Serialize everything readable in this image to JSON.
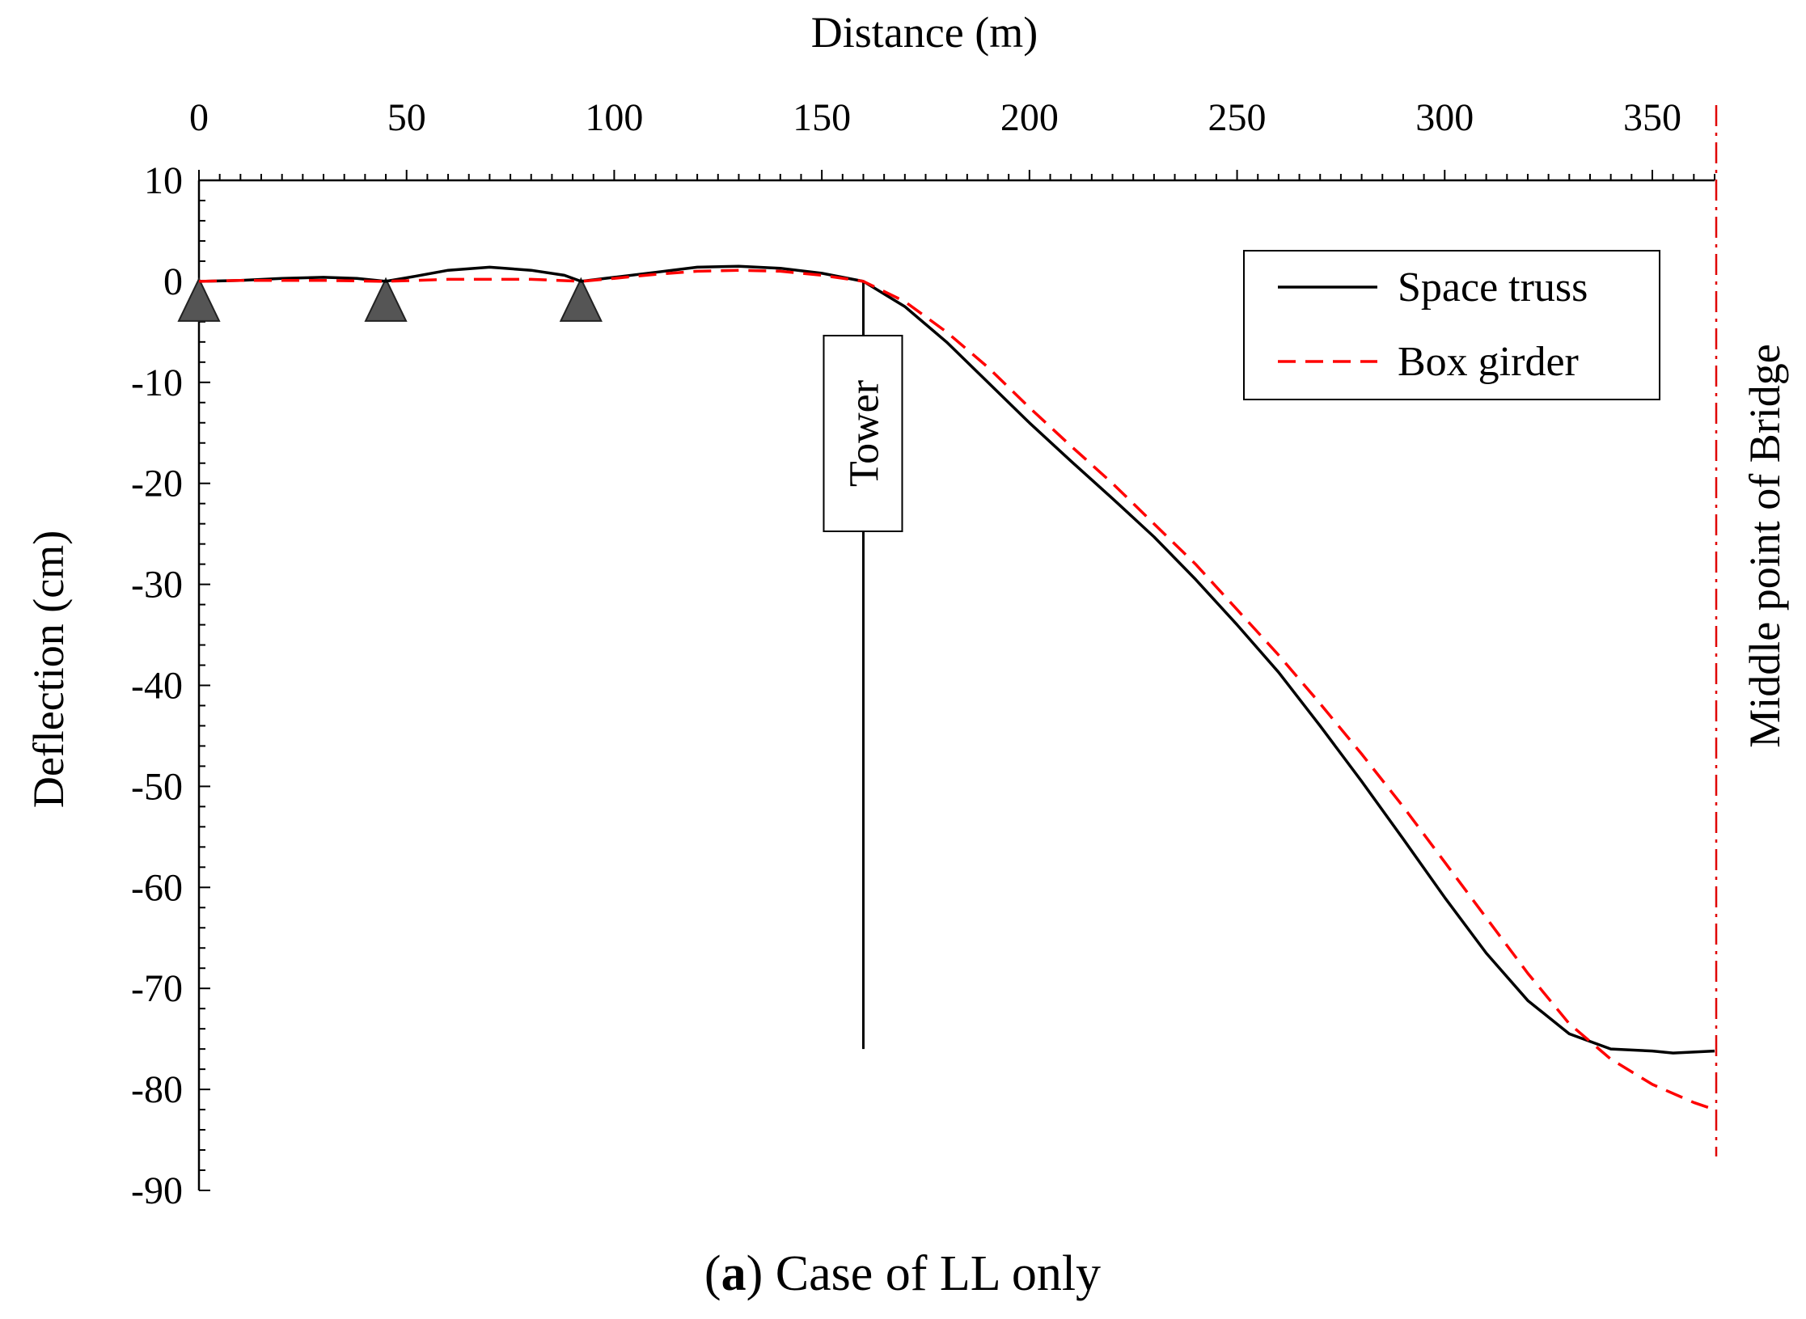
{
  "chart_data": {
    "type": "line",
    "xlabel": "Distance (m)",
    "ylabel": "Deflection (cm)",
    "xlim": [
      0,
      365
    ],
    "ylim": [
      -90,
      10
    ],
    "x_ticks": [
      0,
      50,
      100,
      150,
      200,
      250,
      300,
      350
    ],
    "y_ticks": [
      10,
      0,
      -10,
      -20,
      -30,
      -40,
      -50,
      -60,
      -70,
      -80,
      -90
    ],
    "x_axis_position": "top",
    "grid": false,
    "legend_position": "top-right",
    "series": [
      {
        "name": "Space truss",
        "style": "solid",
        "color": "#000000",
        "points": [
          [
            0,
            0
          ],
          [
            10,
            0.1
          ],
          [
            20,
            0.3
          ],
          [
            30,
            0.4
          ],
          [
            38,
            0.3
          ],
          [
            45,
            0
          ],
          [
            52,
            0.5
          ],
          [
            60,
            1.1
          ],
          [
            70,
            1.4
          ],
          [
            80,
            1.1
          ],
          [
            88,
            0.6
          ],
          [
            92,
            0
          ],
          [
            100,
            0.4
          ],
          [
            110,
            0.9
          ],
          [
            120,
            1.4
          ],
          [
            130,
            1.5
          ],
          [
            140,
            1.3
          ],
          [
            150,
            0.8
          ],
          [
            160,
            0
          ],
          [
            170,
            -2.5
          ],
          [
            180,
            -6
          ],
          [
            190,
            -10
          ],
          [
            200,
            -14
          ],
          [
            210,
            -17.8
          ],
          [
            220,
            -21.5
          ],
          [
            230,
            -25.3
          ],
          [
            240,
            -29.5
          ],
          [
            250,
            -34
          ],
          [
            260,
            -38.7
          ],
          [
            270,
            -44
          ],
          [
            280,
            -49.5
          ],
          [
            290,
            -55.2
          ],
          [
            300,
            -61
          ],
          [
            310,
            -66.5
          ],
          [
            320,
            -71.2
          ],
          [
            330,
            -74.5
          ],
          [
            340,
            -76.0
          ],
          [
            350,
            -76.2
          ],
          [
            355,
            -76.4
          ],
          [
            360,
            -76.3
          ],
          [
            365,
            -76.2
          ]
        ]
      },
      {
        "name": "Box girder",
        "style": "dashed",
        "color": "#ff0000",
        "points": [
          [
            0,
            0
          ],
          [
            10,
            0.1
          ],
          [
            20,
            0.1
          ],
          [
            30,
            0.1
          ],
          [
            45,
            0
          ],
          [
            60,
            0.2
          ],
          [
            80,
            0.2
          ],
          [
            92,
            0
          ],
          [
            100,
            0.3
          ],
          [
            110,
            0.7
          ],
          [
            120,
            1
          ],
          [
            130,
            1.1
          ],
          [
            140,
            1
          ],
          [
            150,
            0.6
          ],
          [
            160,
            0
          ],
          [
            170,
            -2
          ],
          [
            180,
            -5
          ],
          [
            190,
            -8.5
          ],
          [
            200,
            -12.5
          ],
          [
            210,
            -16.3
          ],
          [
            220,
            -20
          ],
          [
            230,
            -24
          ],
          [
            240,
            -28
          ],
          [
            250,
            -32.5
          ],
          [
            260,
            -37
          ],
          [
            270,
            -41.8
          ],
          [
            280,
            -46.8
          ],
          [
            290,
            -52
          ],
          [
            300,
            -57.5
          ],
          [
            310,
            -63
          ],
          [
            320,
            -68.5
          ],
          [
            330,
            -73.5
          ],
          [
            340,
            -77
          ],
          [
            350,
            -79.5
          ],
          [
            360,
            -81.3
          ],
          [
            365,
            -82
          ]
        ]
      }
    ],
    "annotations": {
      "tower": {
        "label": "Tower",
        "x": 160,
        "y_top": 0,
        "y_bottom": -76
      },
      "midpoint": {
        "label": "Middle point of Bridge",
        "x": 365
      },
      "supports_x": [
        0,
        45,
        92
      ]
    },
    "caption": {
      "bold": "a",
      "prefix": "(",
      "rest": ") Case of LL only"
    }
  }
}
